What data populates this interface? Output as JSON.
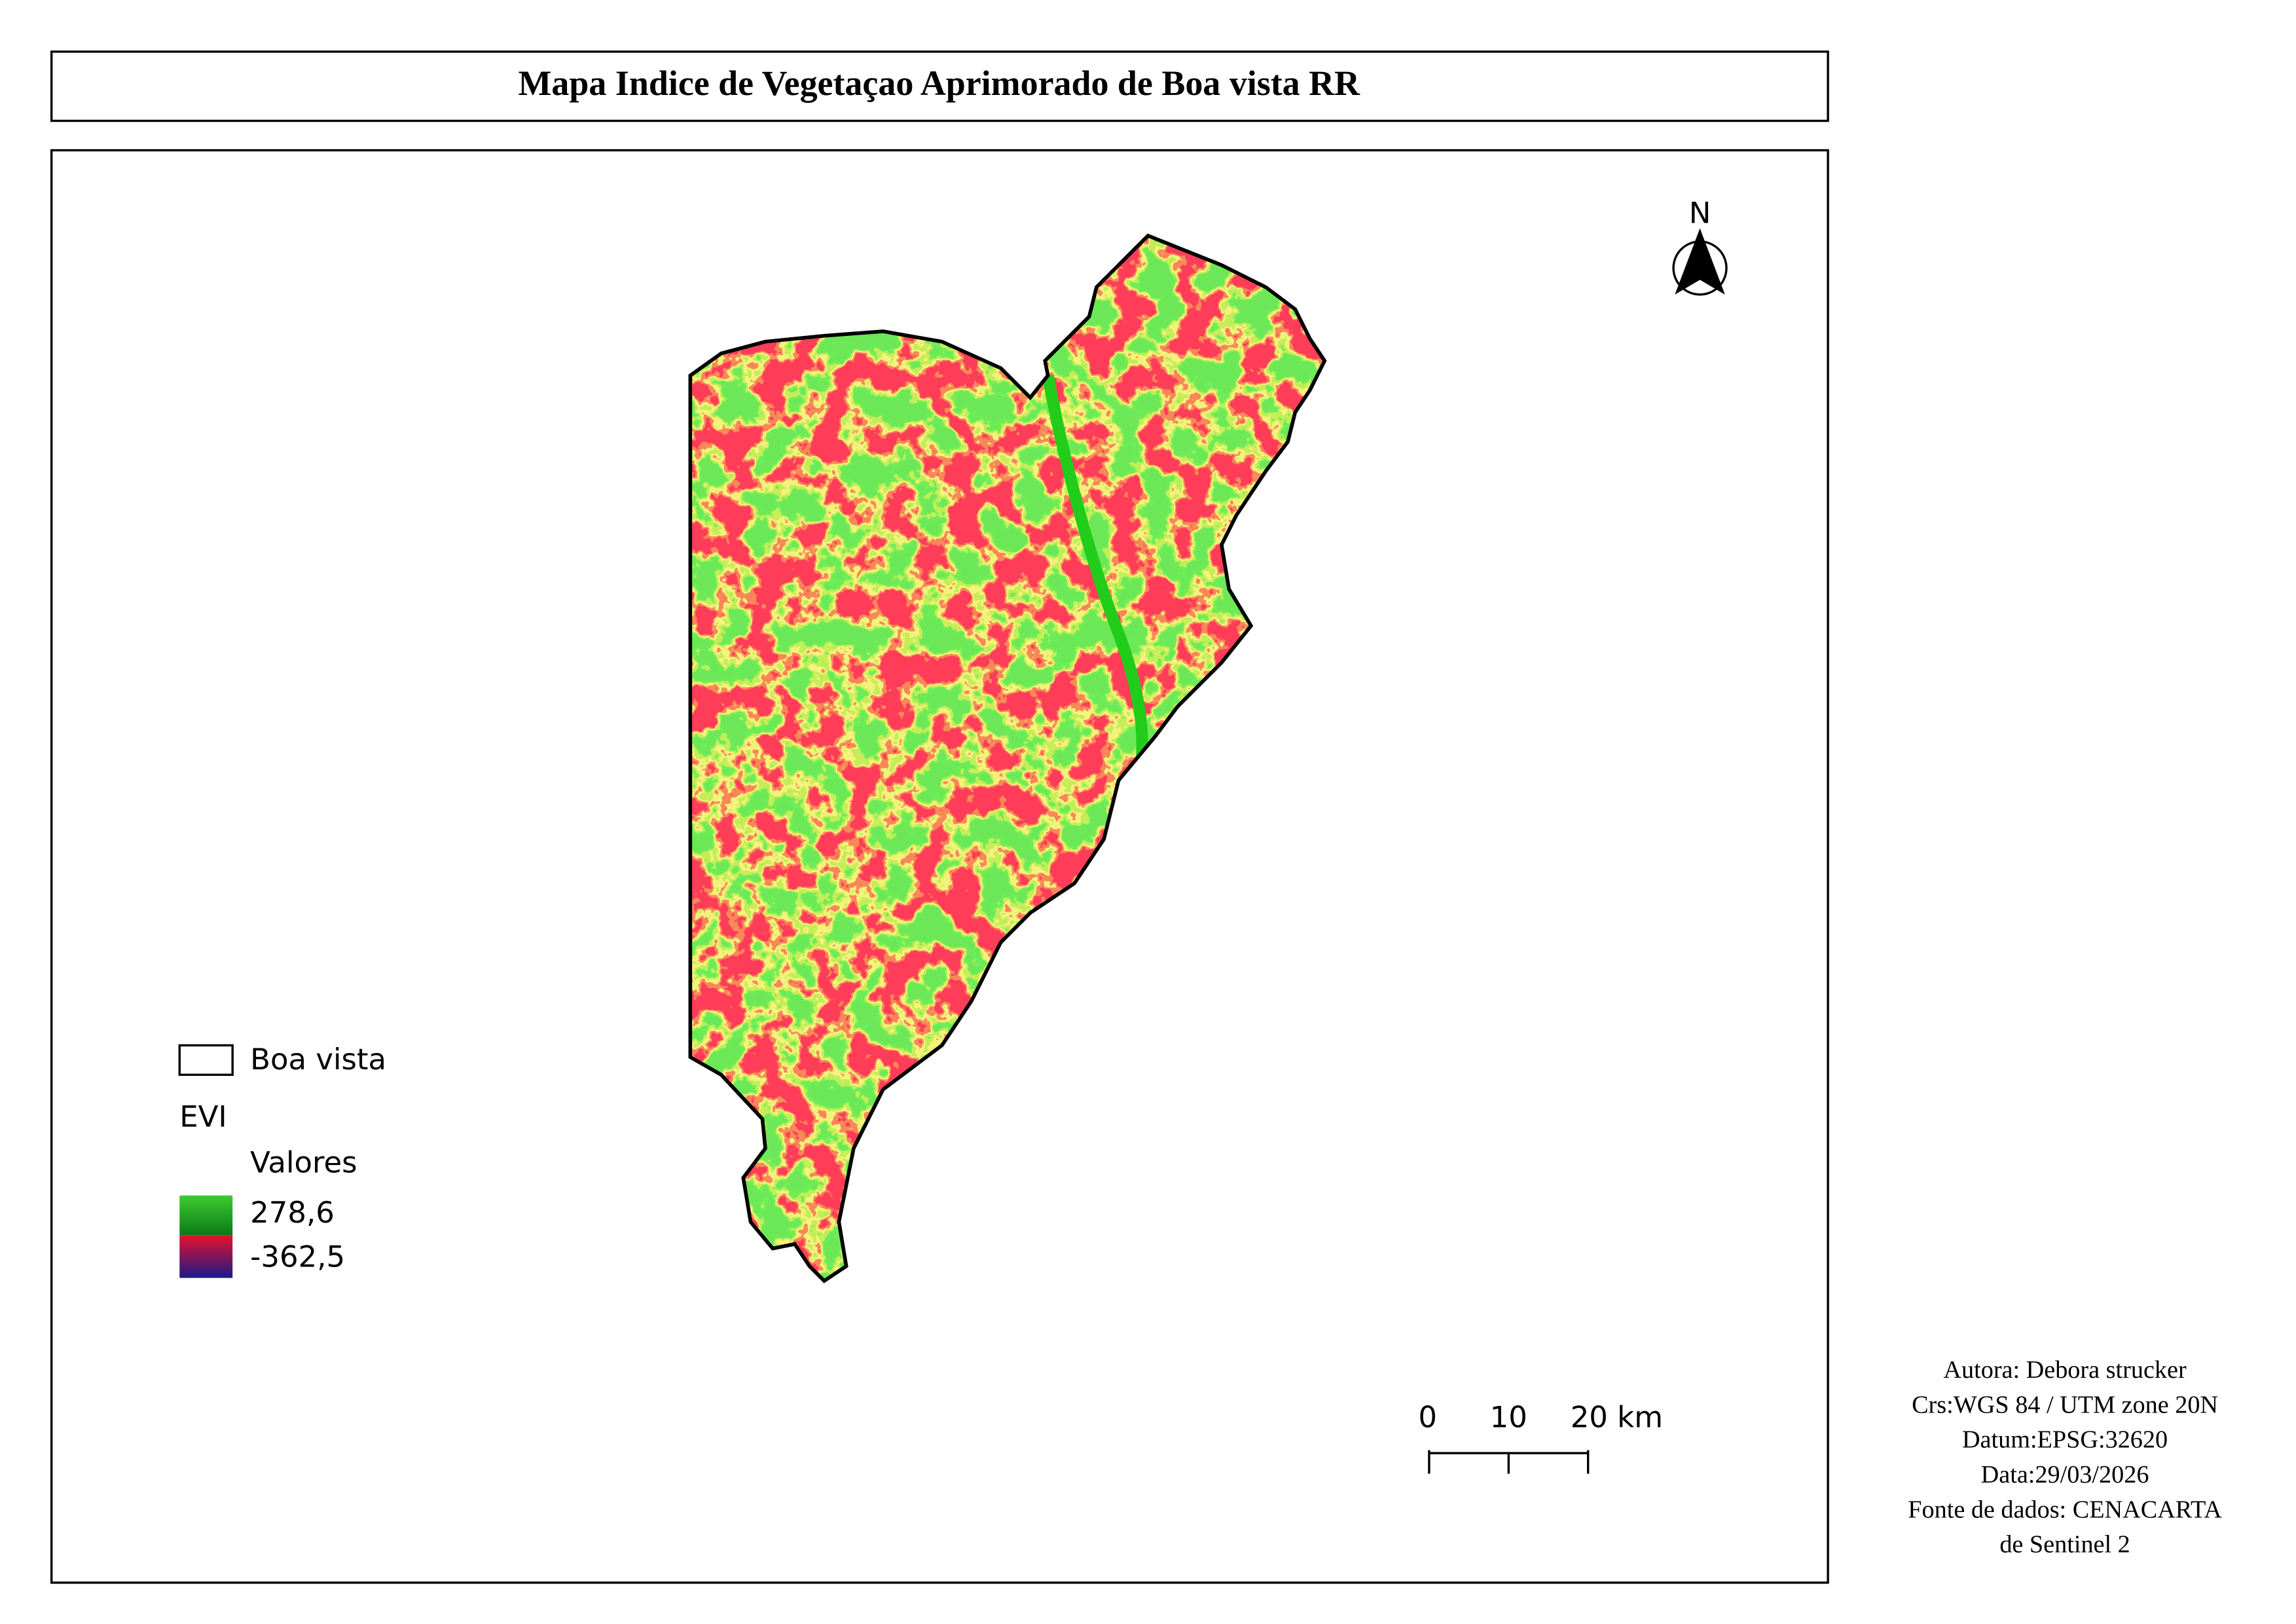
{
  "title": "Mapa Indice de Vegetaçao Aprimorado de Boa vista RR",
  "north_arrow": "N",
  "legend": {
    "boundary": "Boa vista",
    "layer": "EVI",
    "group": "Valores",
    "max": "278,6",
    "min": "-362,5"
  },
  "scale_bar": {
    "labels": [
      "0",
      "10",
      "20 km"
    ]
  },
  "credits": [
    "Autora: Debora strucker",
    "Crs:WGS 84 / UTM zone 20N",
    "Datum:EPSG:32620",
    "Data:29/03/2026",
    "Fonte de dados: CENACARTA",
    "de Sentinel 2"
  ]
}
